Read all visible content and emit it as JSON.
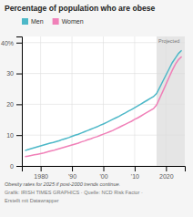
{
  "chart_data": {
    "type": "line",
    "title": "Percentage of population who are obese",
    "x": [
      1975,
      1976,
      1977,
      1978,
      1979,
      1980,
      1981,
      1982,
      1983,
      1984,
      1985,
      1986,
      1987,
      1988,
      1989,
      1990,
      1991,
      1992,
      1993,
      1994,
      1995,
      1996,
      1997,
      1998,
      1999,
      2000,
      2001,
      2002,
      2003,
      2004,
      2005,
      2006,
      2007,
      2008,
      2009,
      2010,
      2011,
      2012,
      2013,
      2014,
      2015,
      2016,
      2017,
      2018,
      2019,
      2020,
      2021,
      2022,
      2023,
      2024,
      2025
    ],
    "series": [
      {
        "name": "Men",
        "color": "#4db8c8",
        "values": [
          5.0,
          5.3,
          5.6,
          5.9,
          6.2,
          6.5,
          6.8,
          7.1,
          7.4,
          7.6,
          7.9,
          8.2,
          8.6,
          8.9,
          9.2,
          9.6,
          10.0,
          10.3,
          10.7,
          11.1,
          11.5,
          11.9,
          12.3,
          12.7,
          13.2,
          13.6,
          14.1,
          14.6,
          15.1,
          15.6,
          16.1,
          16.7,
          17.2,
          17.8,
          18.3,
          18.9,
          19.5,
          20.1,
          20.7,
          21.3,
          21.9,
          22.5,
          23.5,
          25.5,
          27.5,
          29.5,
          31.5,
          33.5,
          35.0,
          36.5,
          37.5
        ]
      },
      {
        "name": "Women",
        "color": "#f080b8",
        "values": [
          3.0,
          3.2,
          3.4,
          3.6,
          3.8,
          4.0,
          4.2,
          4.5,
          4.8,
          5.0,
          5.3,
          5.6,
          5.9,
          6.2,
          6.5,
          6.8,
          7.1,
          7.4,
          7.8,
          8.1,
          8.5,
          8.8,
          9.2,
          9.5,
          9.9,
          10.3,
          10.7,
          11.1,
          11.5,
          12.0,
          12.5,
          13.0,
          13.5,
          14.0,
          14.5,
          15.1,
          15.6,
          16.2,
          16.8,
          17.4,
          18.0,
          18.6,
          19.8,
          22.0,
          24.2,
          26.5,
          28.8,
          31.0,
          33.0,
          34.5,
          35.5
        ]
      }
    ],
    "xlim": [
      1974,
      2026
    ],
    "xticks": [
      1980,
      {
        "value": 1990,
        "label": "'90"
      },
      {
        "value": 2000,
        "label": "'00"
      },
      {
        "value": 2010,
        "label": "'10"
      },
      2020
    ],
    "ylim": [
      0,
      42
    ],
    "yticks": [
      0,
      10,
      20,
      30,
      {
        "value": 40,
        "label": "40%"
      }
    ],
    "grid": true,
    "legend": "top",
    "annotations": [
      {
        "text": "Projected",
        "x": 2017,
        "color": "#e5e5e5"
      }
    ],
    "notes": [
      "Obesity rates for 2025 if post-2000 trends continue.",
      "Grafik: IRISH TIMES GRAPHICS · Quelle: NCD Risk Factor ·",
      "Erstellt mit Datawrapper"
    ]
  }
}
